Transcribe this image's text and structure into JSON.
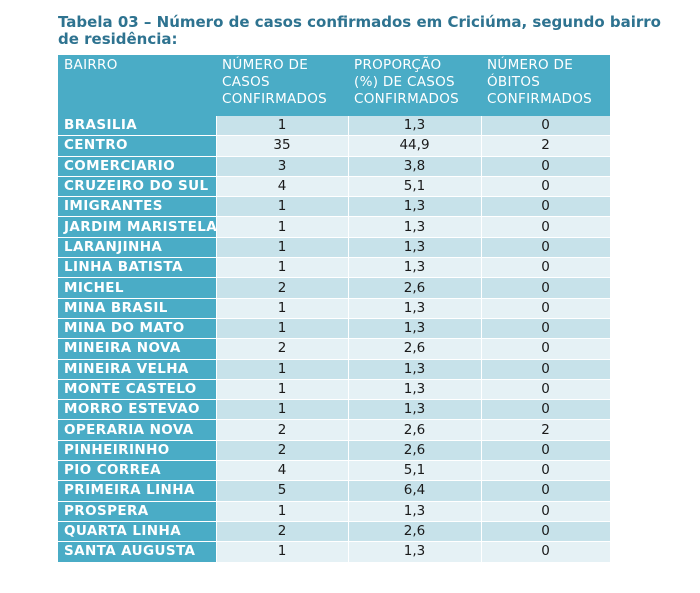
{
  "caption": "Tabela 03 – Número de casos confirmados em Criciúma, segundo bairro de residência:",
  "headers": {
    "bairro": "BAIRRO",
    "casos": [
      "NÚMERO DE",
      "CASOS",
      "CONFIRMADOS"
    ],
    "proporcao": [
      "PROPORÇÃO",
      "(%) DE CASOS",
      "CONFIRMADOS"
    ],
    "obitos": [
      "NÚMERO DE",
      "ÓBITOS",
      "CONFIRMADOS"
    ]
  },
  "rows": [
    {
      "bairro": "BRASILIA",
      "casos": "1",
      "proporcao": "1,3",
      "obitos": "0"
    },
    {
      "bairro": "CENTRO",
      "casos": "35",
      "proporcao": "44,9",
      "obitos": "2"
    },
    {
      "bairro": "COMERCIARIO",
      "casos": "3",
      "proporcao": "3,8",
      "obitos": "0"
    },
    {
      "bairro": "CRUZEIRO DO SUL",
      "casos": "4",
      "proporcao": "5,1",
      "obitos": "0"
    },
    {
      "bairro": "IMIGRANTES",
      "casos": "1",
      "proporcao": "1,3",
      "obitos": "0"
    },
    {
      "bairro": "JARDIM MARISTELA",
      "casos": "1",
      "proporcao": "1,3",
      "obitos": "0"
    },
    {
      "bairro": "LARANJINHA",
      "casos": "1",
      "proporcao": "1,3",
      "obitos": "0"
    },
    {
      "bairro": "LINHA BATISTA",
      "casos": "1",
      "proporcao": "1,3",
      "obitos": "0"
    },
    {
      "bairro": "MICHEL",
      "casos": "2",
      "proporcao": "2,6",
      "obitos": "0"
    },
    {
      "bairro": "MINA BRASIL",
      "casos": "1",
      "proporcao": "1,3",
      "obitos": "0"
    },
    {
      "bairro": "MINA DO MATO",
      "casos": "1",
      "proporcao": "1,3",
      "obitos": "0"
    },
    {
      "bairro": "MINEIRA NOVA",
      "casos": "2",
      "proporcao": "2,6",
      "obitos": "0"
    },
    {
      "bairro": "MINEIRA VELHA",
      "casos": "1",
      "proporcao": "1,3",
      "obitos": "0"
    },
    {
      "bairro": "MONTE CASTELO",
      "casos": "1",
      "proporcao": "1,3",
      "obitos": "0"
    },
    {
      "bairro": "MORRO ESTEVAO",
      "casos": "1",
      "proporcao": "1,3",
      "obitos": "0"
    },
    {
      "bairro": "OPERARIA NOVA",
      "casos": "2",
      "proporcao": "2,6",
      "obitos": "2"
    },
    {
      "bairro": "PINHEIRINHO",
      "casos": "2",
      "proporcao": "2,6",
      "obitos": "0"
    },
    {
      "bairro": "PIO CORREA",
      "casos": "4",
      "proporcao": "5,1",
      "obitos": "0"
    },
    {
      "bairro": "PRIMEIRA LINHA",
      "casos": "5",
      "proporcao": "6,4",
      "obitos": "0"
    },
    {
      "bairro": "PROSPERA",
      "casos": "1",
      "proporcao": "1,3",
      "obitos": "0"
    },
    {
      "bairro": "QUARTA LINHA",
      "casos": "2",
      "proporcao": "2,6",
      "obitos": "0"
    },
    {
      "bairro": "SANTA AUGUSTA",
      "casos": "1",
      "proporcao": "1,3",
      "obitos": "0"
    }
  ]
}
